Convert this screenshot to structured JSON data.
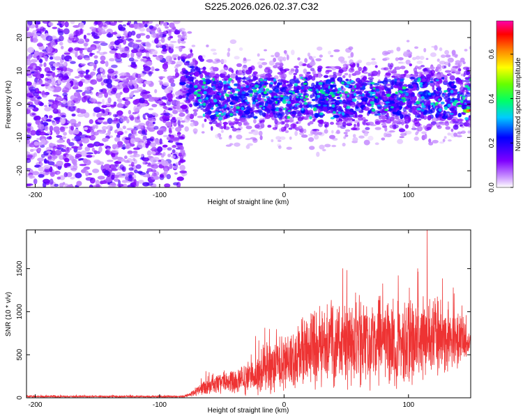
{
  "figure": {
    "title": "S225.2026.026.02.37.C32"
  },
  "chart_data": [
    {
      "type": "heatmap",
      "xlabel": "Height of straight line (km)",
      "ylabel": "Frequency (Hz)",
      "xlim": [
        -207,
        150
      ],
      "ylim": [
        -25,
        25
      ],
      "x_ticks": [
        -200,
        -100,
        0,
        100
      ],
      "y_ticks": [
        -20,
        -10,
        0,
        10,
        20
      ],
      "colorbar": {
        "label": "Normalized spectral amplitude",
        "range": [
          0.0,
          0.75
        ],
        "ticks": [
          0.0,
          0.2,
          0.4,
          0.6
        ],
        "colors": [
          "#ffffff",
          "#cc99ff",
          "#7f00ff",
          "#0000ff",
          "#00ffff",
          "#00ff00",
          "#ffff00",
          "#ff7f00",
          "#ff0000",
          "#ff00aa"
        ]
      },
      "regions": [
        {
          "x_range": [
            -207,
            -80
          ],
          "freq_range": [
            -25,
            25
          ],
          "level": 0.12,
          "pattern": "noise, full band"
        },
        {
          "x_range": [
            -80,
            150
          ],
          "center_freq": 2,
          "half_width_hz": 10,
          "level": 0.2,
          "pattern": "signal band"
        },
        {
          "x_range": [
            -70,
            140
          ],
          "center_freq": 2,
          "level": 0.35,
          "pattern": "peak speckles"
        },
        {
          "x": 147,
          "freq": -2,
          "level": 0.75,
          "pattern": "maximum at right edge"
        }
      ]
    },
    {
      "type": "line",
      "xlabel": "Height of straight line (km)",
      "ylabel": "SNR (10 * v/v)",
      "xlim": [
        -207,
        150
      ],
      "ylim": [
        0,
        1950
      ],
      "x_ticks": [
        -200,
        -100,
        0,
        100
      ],
      "y_ticks": [
        0,
        500,
        1000,
        1500
      ],
      "series": [
        {
          "color": "#ee3333",
          "envelope": [
            {
              "x": -207,
              "mean": 15,
              "spread": 10
            },
            {
              "x": -80,
              "mean": 15,
              "spread": 10
            },
            {
              "x": -75,
              "mean": 40,
              "spread": 30
            },
            {
              "x": -60,
              "mean": 150,
              "spread": 100
            },
            {
              "x": -40,
              "mean": 200,
              "spread": 140
            },
            {
              "x": -20,
              "mean": 300,
              "spread": 220
            },
            {
              "x": 0,
              "mean": 420,
              "spread": 300
            },
            {
              "x": 20,
              "mean": 560,
              "spread": 380
            },
            {
              "x": 40,
              "mean": 650,
              "spread": 420
            },
            {
              "x": 60,
              "mean": 640,
              "spread": 440
            },
            {
              "x": 80,
              "mean": 640,
              "spread": 460
            },
            {
              "x": 100,
              "mean": 660,
              "spread": 460
            },
            {
              "x": 120,
              "mean": 700,
              "spread": 420
            },
            {
              "x": 140,
              "mean": 680,
              "spread": 320
            },
            {
              "x": 150,
              "mean": 640,
              "spread": 100
            }
          ],
          "peak": {
            "x": 115,
            "y": 1950
          }
        }
      ]
    }
  ]
}
